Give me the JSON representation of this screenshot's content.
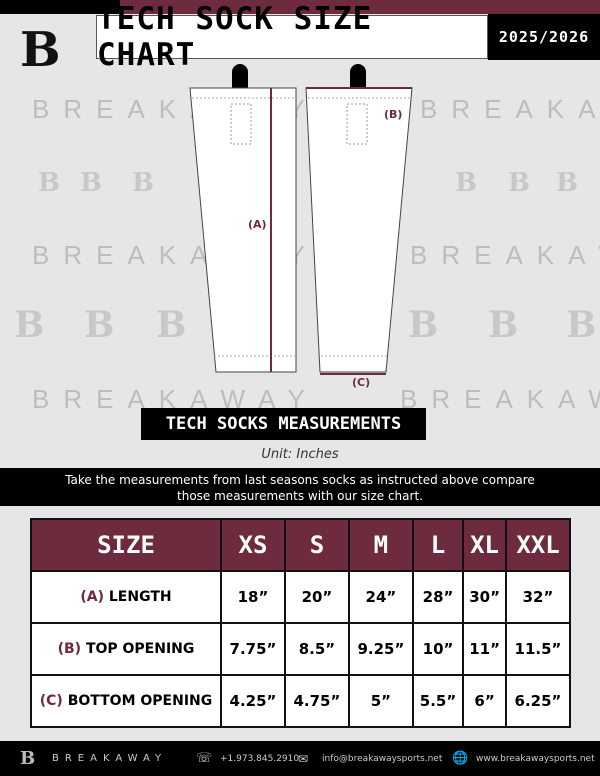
{
  "header": {
    "title": "TECH SOCK SIZE CHART",
    "year": "2025/2026",
    "logo_letter": "B"
  },
  "watermark": {
    "text": "BREAKAWAY",
    "letter": "B"
  },
  "diagram": {
    "label_a": "(A)",
    "label_b": "(B)",
    "label_c": "(C)"
  },
  "section": {
    "title": "TECH SOCKS MEASUREMENTS",
    "unit": "Unit: Inches",
    "instructions": "Take the measurements from last seasons socks as instructed above compare those measurements  with our size chart."
  },
  "table": {
    "headers": [
      "SIZE",
      "XS",
      "S",
      "M",
      "L",
      "XL",
      "XXL"
    ],
    "rows": [
      {
        "key": "(A)",
        "label": "LENGTH",
        "values": [
          "18”",
          "20”",
          "24”",
          "28”",
          "30”",
          "32”"
        ]
      },
      {
        "key": "(B)",
        "label": "TOP OPENING",
        "values": [
          "7.75”",
          "8.5”",
          "9.25”",
          "10”",
          "11”",
          "11.5”"
        ]
      },
      {
        "key": "(C)",
        "label": "BOTTOM OPENING",
        "values": [
          "4.25”",
          "4.75”",
          "5”",
          "5.5”",
          "6”",
          "6.25”"
        ]
      }
    ]
  },
  "footer": {
    "brand": "BREAKAWAY",
    "phone": "+1.973.845.2910",
    "email": "info@breakawaysports.net",
    "website": "www.breakawaysports.net"
  },
  "colors": {
    "maroon": "#6e2b3e",
    "black": "#000000",
    "background": "#e6e6e8"
  }
}
